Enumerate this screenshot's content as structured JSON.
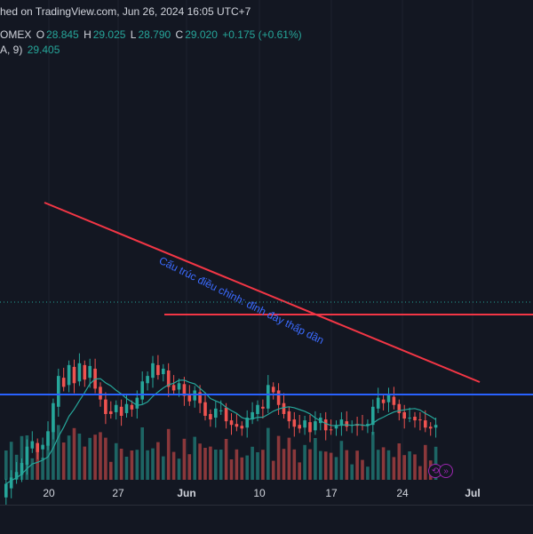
{
  "header": {
    "published": "hed on TradingView.com, Jun 26, 2024 16:05 UTC+7",
    "symbol": "OMEX",
    "o_label": "O",
    "o_value": "28.845",
    "h_label": "H",
    "h_value": "29.025",
    "l_label": "L",
    "l_value": "28.790",
    "c_label": "C",
    "c_value": "29.020",
    "change": "+0.175 (+0.61%)",
    "ma_label": "A, 9)",
    "ma_value": "29.405"
  },
  "x_axis": {
    "labels": [
      {
        "text": "20",
        "bold": false
      },
      {
        "text": "27",
        "bold": false
      },
      {
        "text": "Jun",
        "bold": true
      },
      {
        "text": "10",
        "bold": false
      },
      {
        "text": "17",
        "bold": false
      },
      {
        "text": "24",
        "bold": false
      },
      {
        "text": "Jul",
        "bold": true
      }
    ]
  },
  "annotation": {
    "text": "Cấu trúc điều chỉnh: đỉnh đáy thấp dần",
    "color": "#3b6bff"
  },
  "colors": {
    "up": "#26a69a",
    "down": "#ef5350",
    "trendline": "#f23645",
    "support": "#f23645",
    "volume_line": "#2962ff",
    "ma": "#26a69a",
    "background": "#131722",
    "grid": "#1e222d"
  },
  "icons": [
    "replay-icon",
    "forward-icon"
  ],
  "chart_data": {
    "type": "candlestick",
    "title": "",
    "overlays": [
      "moving-average-9",
      "descending-trendline",
      "horizontal-support"
    ],
    "last_close": 29.02,
    "ma_last": 29.405,
    "candles": [
      [
        21.0,
        22.5
      ],
      [
        22.0,
        23.2
      ],
      [
        23.0,
        23.8
      ],
      [
        23.5,
        24.8
      ],
      [
        24.6,
        26.6
      ],
      [
        26.4,
        27.2
      ],
      [
        27.0,
        26.0
      ],
      [
        26.3,
        26.8
      ],
      [
        26.7,
        28.3
      ],
      [
        28.2,
        31.4
      ],
      [
        31.0,
        34.4
      ],
      [
        34.2,
        33.2
      ],
      [
        33.4,
        35.6
      ],
      [
        35.4,
        33.6
      ],
      [
        33.8,
        35.8
      ],
      [
        35.6,
        34.0
      ],
      [
        34.2,
        35.5
      ],
      [
        35.2,
        33.0
      ],
      [
        33.2,
        31.8
      ],
      [
        31.8,
        30.2
      ],
      [
        30.5,
        30.2
      ],
      [
        30.4,
        31.2
      ],
      [
        31.0,
        30.0
      ],
      [
        30.3,
        31.3
      ],
      [
        31.2,
        30.7
      ],
      [
        30.8,
        32.0
      ],
      [
        31.8,
        33.8
      ],
      [
        33.6,
        34.4
      ],
      [
        34.2,
        35.8
      ],
      [
        35.6,
        34.5
      ],
      [
        34.6,
        35.2
      ],
      [
        35.0,
        33.2
      ],
      [
        33.4,
        32.8
      ],
      [
        32.9,
        33.6
      ],
      [
        33.5,
        32.2
      ],
      [
        32.3,
        31.6
      ],
      [
        31.7,
        32.8
      ],
      [
        32.6,
        31.4
      ],
      [
        31.5,
        30.0
      ],
      [
        30.2,
        29.6
      ],
      [
        29.8,
        30.8
      ],
      [
        30.6,
        30.6
      ],
      [
        30.9,
        29.4
      ],
      [
        29.5,
        29.0
      ],
      [
        29.1,
        28.8
      ],
      [
        28.9,
        28.6
      ],
      [
        28.7,
        29.8
      ],
      [
        29.6,
        30.4
      ],
      [
        30.2,
        31.2
      ],
      [
        31.0,
        30.8
      ],
      [
        30.8,
        33.4
      ],
      [
        33.2,
        32.6
      ],
      [
        32.8,
        31.2
      ],
      [
        31.4,
        30.2
      ],
      [
        30.5,
        29.4
      ],
      [
        29.6,
        28.8
      ],
      [
        29.0,
        28.6
      ],
      [
        28.7,
        29.5
      ],
      [
        29.3,
        28.2
      ],
      [
        28.4,
        29.4
      ],
      [
        29.2,
        29.8
      ],
      [
        29.6,
        28.4
      ],
      [
        28.5,
        28.4
      ],
      [
        28.6,
        29.0
      ],
      [
        28.9,
        29.6
      ],
      [
        29.4,
        28.8
      ],
      [
        28.9,
        29.0
      ],
      [
        29.1,
        28.9
      ],
      [
        29.0,
        28.9
      ],
      [
        28.9,
        29.1
      ],
      [
        29.0,
        31.0
      ],
      [
        30.8,
        32.0
      ],
      [
        31.8,
        31.4
      ],
      [
        31.5,
        32.3
      ],
      [
        32.1,
        31.2
      ],
      [
        31.3,
        30.3
      ],
      [
        30.4,
        29.7
      ],
      [
        29.8,
        29.8
      ],
      [
        29.9,
        29.5
      ],
      [
        29.6,
        29.5
      ],
      [
        29.5,
        28.7
      ],
      [
        28.8,
        28.6
      ],
      [
        28.7,
        29.0
      ]
    ]
  }
}
